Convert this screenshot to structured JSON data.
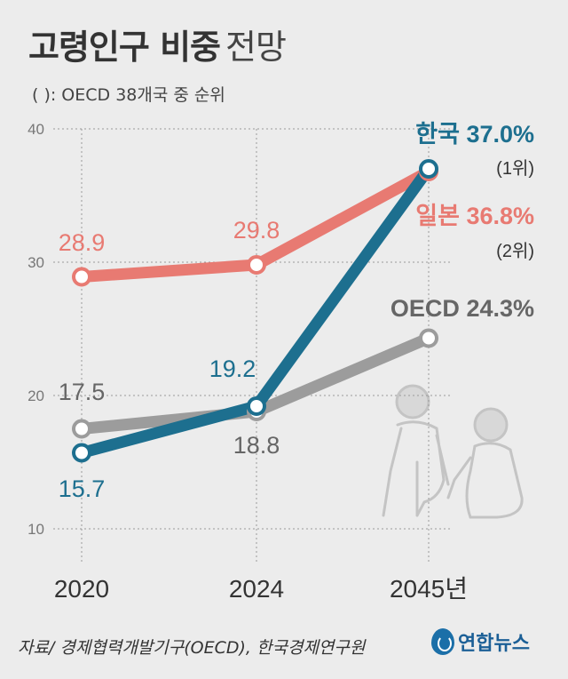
{
  "header": {
    "title_bold": "고령인구 비중",
    "title_light": "전망",
    "note": "(   ): OECD 38개국 중 순위"
  },
  "footer": {
    "source": "자료/ 경제협력개발기구(OECD), 한국경제연구원",
    "logo": "연합뉴스"
  },
  "colors": {
    "korea": "#1d6f8f",
    "japan": "#e87a72",
    "oecd": "#9c9c9c",
    "grid": "#9a9a9a"
  },
  "chart_data": {
    "type": "line",
    "categories": [
      "2020",
      "2024",
      "2045년"
    ],
    "yticks": [
      10,
      20,
      30,
      40
    ],
    "ylim": [
      10,
      40
    ],
    "grid": true,
    "series": [
      {
        "key": "oecd",
        "name": "OECD",
        "values": [
          17.5,
          18.8,
          24.3
        ],
        "end_value_label": "24.3%",
        "rank": ""
      },
      {
        "key": "japan",
        "name": "일본",
        "values": [
          28.9,
          29.8,
          36.8
        ],
        "end_value_label": "36.8%",
        "rank": "(2위)"
      },
      {
        "key": "korea",
        "name": "한국",
        "values": [
          15.7,
          19.2,
          37.0
        ],
        "end_value_label": "37.0%",
        "rank": "(1위)"
      }
    ],
    "point_labels": {
      "korea": [
        "15.7",
        "19.2"
      ],
      "japan": [
        "28.9",
        "29.8"
      ],
      "oecd": [
        "17.5",
        "18.8"
      ]
    }
  }
}
